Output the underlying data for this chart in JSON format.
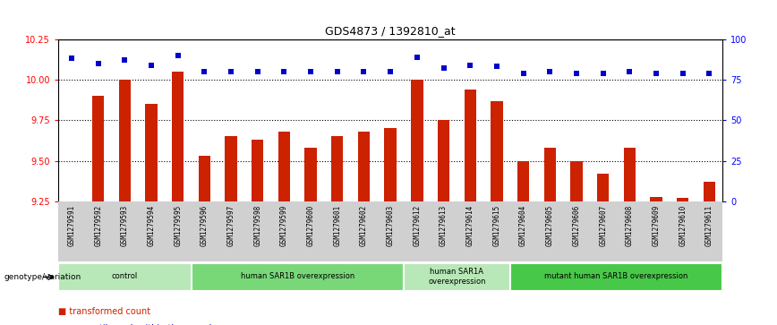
{
  "title": "GDS4873 / 1392810_at",
  "samples": [
    "GSM1279591",
    "GSM1279592",
    "GSM1279593",
    "GSM1279594",
    "GSM1279595",
    "GSM1279596",
    "GSM1279597",
    "GSM1279598",
    "GSM1279599",
    "GSM1279600",
    "GSM1279601",
    "GSM1279602",
    "GSM1279603",
    "GSM1279612",
    "GSM1279613",
    "GSM1279614",
    "GSM1279615",
    "GSM1279604",
    "GSM1279605",
    "GSM1279606",
    "GSM1279607",
    "GSM1279608",
    "GSM1279609",
    "GSM1279610",
    "GSM1279611"
  ],
  "bar_values": [
    9.25,
    9.9,
    10.0,
    9.85,
    10.05,
    9.53,
    9.65,
    9.63,
    9.68,
    9.58,
    9.65,
    9.68,
    9.7,
    10.0,
    9.75,
    9.94,
    9.87,
    9.5,
    9.58,
    9.5,
    9.42,
    9.58,
    9.28,
    9.27,
    9.37
  ],
  "dot_values": [
    88,
    85,
    87,
    84,
    90,
    80,
    80,
    80,
    80,
    80,
    80,
    80,
    80,
    89,
    82,
    84,
    83,
    79,
    80,
    79,
    79,
    80,
    79,
    79,
    79
  ],
  "groups": [
    {
      "label": "control",
      "start": 0,
      "end": 5,
      "color": "#b8e8b8"
    },
    {
      "label": "human SAR1B overexpression",
      "start": 5,
      "end": 13,
      "color": "#78d878"
    },
    {
      "label": "human SAR1A\noverexpression",
      "start": 13,
      "end": 17,
      "color": "#b8e8b8"
    },
    {
      "label": "mutant human SAR1B overexpression",
      "start": 17,
      "end": 25,
      "color": "#48c848"
    }
  ],
  "ylim": [
    9.25,
    10.25
  ],
  "y_ticks_left": [
    9.25,
    9.5,
    9.75,
    10.0,
    10.25
  ],
  "y_ticks_right": [
    0,
    25,
    50,
    75,
    100
  ],
  "bar_color": "#cc2200",
  "dot_color": "#0000cc",
  "dotted_lines": [
    10.0,
    9.75,
    9.5
  ]
}
